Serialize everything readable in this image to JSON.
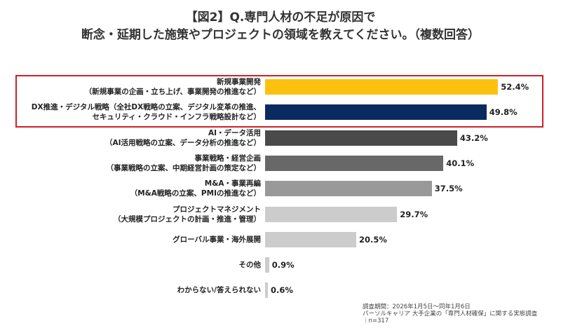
{
  "chart_data": {
    "type": "bar",
    "orientation": "horizontal",
    "title": [
      "【図2】Q.専門人材の不足が原因で",
      "断念・延期した施策やプロジェクトの領域を教えてください。（複数回答）"
    ],
    "categories": [
      [
        "新規事業開発",
        "（新規事業の企画・立ち上げ、事業開発の推進など）"
      ],
      [
        "DX推進・デジタル戦略（全社DX戦略の立案、デジタル変革の推進、",
        "セキュリティ・クラウド・インフラ戦略設計など）"
      ],
      [
        "AI・データ活用",
        "（AI活用戦略の立案、データ分析の推進など）"
      ],
      [
        "事業戦略・経営企画",
        "（事業戦略の立案、中期経営計画の策定など）"
      ],
      [
        "M&A・事業再編",
        "（M&A戦略の立案、PMIの推進など）"
      ],
      [
        "プロジェクトマネジメント",
        "（大規模プロジェクトの計画・推進・管理）"
      ],
      [
        "グローバル事業・海外展開"
      ],
      [
        "その他"
      ],
      [
        "わからない/答えられない"
      ]
    ],
    "values": [
      52.4,
      49.8,
      43.2,
      40.1,
      37.5,
      29.7,
      20.5,
      0.9,
      0.6
    ],
    "value_labels": [
      "52.4%",
      "49.8%",
      "43.2%",
      "40.1%",
      "37.5%",
      "29.7%",
      "20.5%",
      "0.9%",
      "0.6%"
    ],
    "colors": [
      "#FDC20F",
      "#0B2B60",
      "#4A4A4A",
      "#686868",
      "#999999",
      "#CCCCCC",
      "#CCCCCC",
      "#CCCCCC",
      "#CCCCCC"
    ],
    "highlight_color": "#D0202A",
    "unit": "%",
    "grid": false,
    "legend": "none"
  },
  "footnote": {
    "lines": [
      "調査期間：2026年1月5日〜同年1月6日",
      "パーソルキャリア 大手企業の「専門人材確保」に関する実態調査",
      "｜n=317"
    ]
  }
}
